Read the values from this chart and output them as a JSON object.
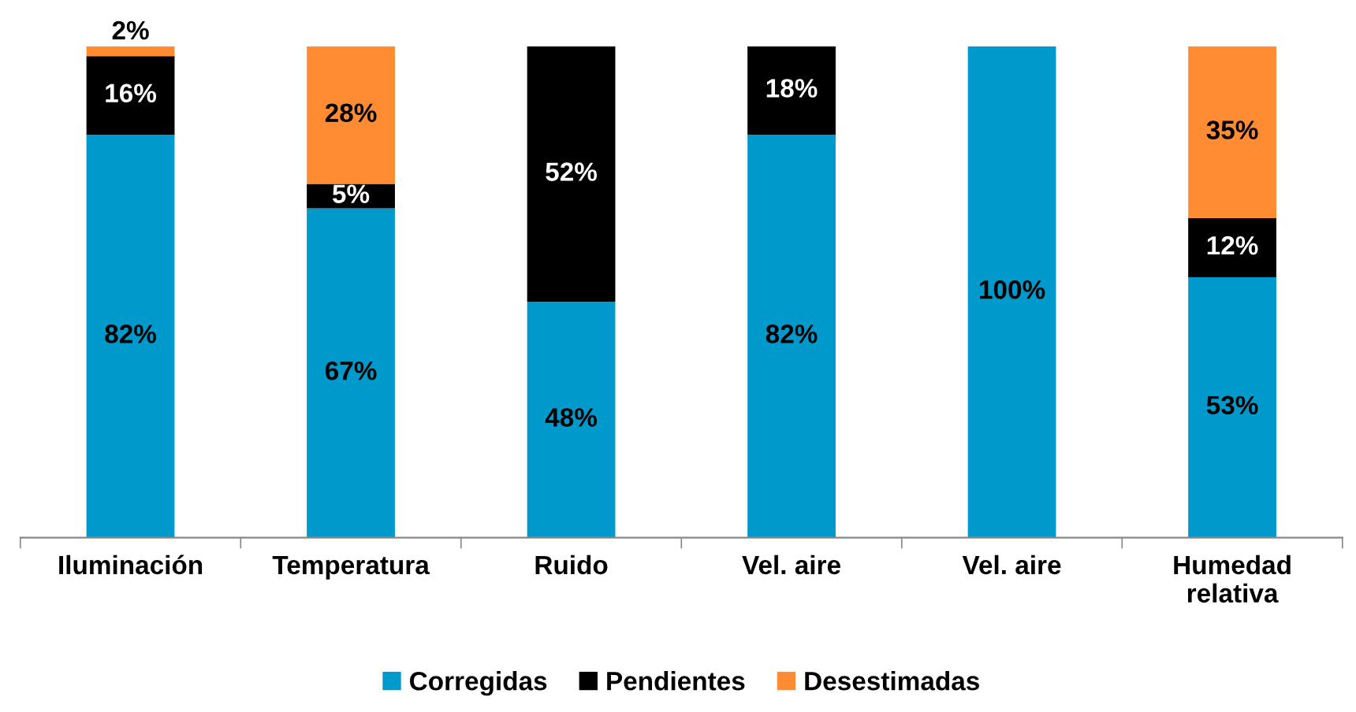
{
  "chart_data": {
    "type": "bar",
    "stacked": true,
    "categories": [
      "Iluminación",
      "Temperatura",
      "Ruido",
      "Vel. aire",
      "Vel. aire",
      "Humedad\nrelativa"
    ],
    "series": [
      {
        "name": "Corregidas",
        "color": "#0099cc",
        "values": [
          82,
          67,
          48,
          82,
          100,
          53
        ],
        "value_labels": [
          "82%",
          "67%",
          "48%",
          "82%",
          "100%",
          "53%"
        ]
      },
      {
        "name": "Pendientes",
        "color": "#000000",
        "values": [
          16,
          5,
          52,
          18,
          0,
          12
        ],
        "value_labels": [
          "16%",
          "5%",
          "52%",
          "18%",
          null,
          "12%"
        ]
      },
      {
        "name": "Desestimadas",
        "color": "#ff8c33",
        "values": [
          2,
          28,
          0,
          0,
          0,
          35
        ],
        "value_labels": [
          "2%",
          "28%",
          null,
          null,
          null,
          "35%"
        ]
      }
    ],
    "ylim": [
      0,
      100
    ],
    "tick_labels": "x",
    "grid": false,
    "legend": "bottom"
  }
}
